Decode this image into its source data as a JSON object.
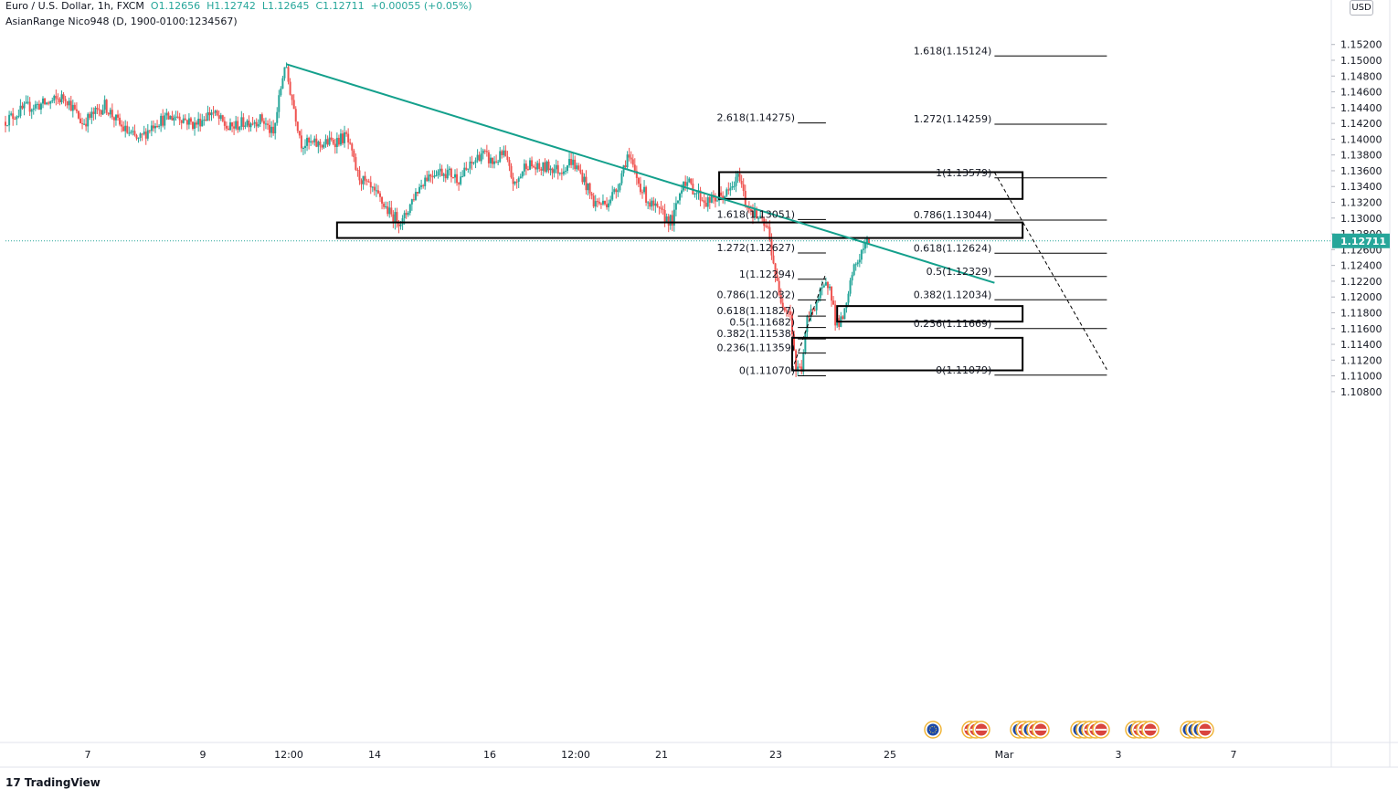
{
  "header": {
    "symbol_title": "Euro / U.S. Dollar, 1h, FXCM",
    "ohlc": {
      "o": "O1.12656",
      "h": "H1.12742",
      "l": "L1.12645",
      "c": "C1.12711",
      "change": "+0.00055 (+0.05%)"
    },
    "indicator": "AsianRange Nico948 (D, 1900-0100:1234567)"
  },
  "currency_button": "USD",
  "brand": {
    "name": "TradingView",
    "mark": "17"
  },
  "colors": {
    "up": "#26a69a",
    "down": "#ef5350",
    "trendline": "#14a08c",
    "grid": "#e6e6e6",
    "axis_text": "#131722"
  },
  "chart_data": {
    "type": "candlestick",
    "symbol": "EURUSD",
    "timeframe": "1h",
    "last_price": "1.12711",
    "y_axis": {
      "ylim": [
        1.1068,
        1.1525
      ],
      "ticks": [
        "1.15200",
        "1.15000",
        "1.14800",
        "1.14600",
        "1.14400",
        "1.14200",
        "1.14000",
        "1.13800",
        "1.13600",
        "1.13400",
        "1.13200",
        "1.13000",
        "1.12800",
        "1.12600",
        "1.12400",
        "1.12200",
        "1.12000",
        "1.11800",
        "1.11600",
        "1.11400",
        "1.11200",
        "1.11000",
        "1.10800"
      ]
    },
    "x_axis": {
      "ticks": [
        "7",
        "9",
        "12:00",
        "14",
        "16",
        "12:00",
        "21",
        "23",
        "25",
        "Mar",
        "3",
        "7"
      ]
    },
    "price_path": [
      [
        0,
        1.1422
      ],
      [
        4,
        1.144
      ],
      [
        8,
        1.1446
      ],
      [
        11,
        1.1454
      ],
      [
        14,
        1.142
      ],
      [
        18,
        1.1443
      ],
      [
        21,
        1.1415
      ],
      [
        24,
        1.1398
      ],
      [
        27,
        1.1422
      ],
      [
        31,
        1.143
      ],
      [
        34,
        1.1418
      ],
      [
        37,
        1.1435
      ],
      [
        40,
        1.1413
      ],
      [
        43,
        1.1422
      ],
      [
        46,
        1.1425
      ],
      [
        48,
        1.1405
      ],
      [
        50,
        1.1495
      ],
      [
        51,
        1.1462
      ],
      [
        53,
        1.1395
      ],
      [
        56,
        1.1393
      ],
      [
        59,
        1.1398
      ],
      [
        61,
        1.1403
      ],
      [
        63,
        1.1355
      ],
      [
        65,
        1.1338
      ],
      [
        67,
        1.1323
      ],
      [
        69,
        1.1303
      ],
      [
        71,
        1.1295
      ],
      [
        73,
        1.1328
      ],
      [
        75,
        1.1351
      ],
      [
        77,
        1.136
      ],
      [
        79,
        1.1358
      ],
      [
        81,
        1.135
      ],
      [
        83,
        1.1365
      ],
      [
        85,
        1.1383
      ],
      [
        87,
        1.137
      ],
      [
        89,
        1.1381
      ],
      [
        91,
        1.134
      ],
      [
        93,
        1.137
      ],
      [
        95,
        1.1362
      ],
      [
        97,
        1.1365
      ],
      [
        99,
        1.136
      ],
      [
        101,
        1.1373
      ],
      [
        103,
        1.1353
      ],
      [
        105,
        1.132
      ],
      [
        107,
        1.1318
      ],
      [
        109,
        1.1335
      ],
      [
        111,
        1.138
      ],
      [
        113,
        1.1345
      ],
      [
        115,
        1.1318
      ],
      [
        117,
        1.1305
      ],
      [
        119,
        1.1295
      ],
      [
        121,
        1.135
      ],
      [
        123,
        1.1335
      ],
      [
        125,
        1.132
      ],
      [
        127,
        1.1325
      ],
      [
        129,
        1.1332
      ],
      [
        131,
        1.1354
      ],
      [
        132,
        1.132
      ],
      [
        134,
        1.1302
      ],
      [
        136,
        1.1285
      ],
      [
        137,
        1.1245
      ],
      [
        138,
        1.12
      ],
      [
        140,
        1.118
      ],
      [
        141,
        1.1108
      ],
      [
        142,
        1.111
      ],
      [
        143,
        1.117
      ],
      [
        145,
        1.12
      ],
      [
        147,
        1.122
      ],
      [
        148,
        1.117
      ],
      [
        149,
        1.1168
      ],
      [
        150,
        1.1186
      ],
      [
        151,
        1.123
      ],
      [
        153,
        1.1262
      ],
      [
        154,
        1.1271
      ]
    ],
    "trendline": {
      "from": [
        50,
        1.1495
      ],
      "to": [
        176,
        1.1218
      ]
    },
    "zones": [
      {
        "x": [
          127,
          181
        ],
        "y": [
          1.13243,
          1.13582
        ]
      },
      {
        "x": [
          59,
          181
        ],
        "y": [
          1.12748,
          1.12945
        ]
      },
      {
        "x": [
          148,
          181
        ],
        "y": [
          1.11688,
          1.11885
        ]
      },
      {
        "x": [
          140,
          181
        ],
        "y": [
          1.1107,
          1.11483
        ]
      }
    ],
    "fib_left": {
      "x_text": 140,
      "x_line": [
        141,
        146
      ],
      "levels": [
        {
          "label": "2.618(1.14275)",
          "price": 1.14275
        },
        {
          "label": "1.618(1.13051)",
          "price": 1.13051
        },
        {
          "label": "1.272(1.12627)",
          "price": 1.12627
        },
        {
          "label": "1(1.12294)",
          "price": 1.12294
        },
        {
          "label": "0.786(1.12032)",
          "price": 1.12032
        },
        {
          "label": "0.618(1.11827)",
          "price": 1.11827
        },
        {
          "label": "0.5(1.11682)",
          "price": 1.11682
        },
        {
          "label": "0.382(1.11538)",
          "price": 1.11538
        },
        {
          "label": "0.236(1.11359)",
          "price": 1.11359
        },
        {
          "label": "0(1.11070)",
          "price": 1.1107
        }
      ]
    },
    "fib_right": {
      "x_text": 175,
      "x_line": [
        176,
        196
      ],
      "levels": [
        {
          "label": "1.618(1.15124)",
          "price": 1.15124
        },
        {
          "label": "1.272(1.14259)",
          "price": 1.14259
        },
        {
          "label": "1(1.13579)",
          "price": 1.13579
        },
        {
          "label": "0.786(1.13044)",
          "price": 1.13044
        },
        {
          "label": "0.618(1.12624)",
          "price": 1.12624
        },
        {
          "label": "0.5(1.12329)",
          "price": 1.12329
        },
        {
          "label": "0.382(1.12034)",
          "price": 1.12034
        },
        {
          "label": "0.236(1.11669)",
          "price": 1.11669
        },
        {
          "label": "0(1.11079)",
          "price": 1.11079
        }
      ]
    },
    "dashed_guides": [
      {
        "from": [
          140,
          1.11075
        ],
        "to": [
          146,
          1.123
        ]
      },
      {
        "from": [
          176,
          1.13579
        ],
        "to": [
          196,
          1.11079
        ]
      }
    ],
    "event_icon_groups": [
      {
        "flags": [
          "eu"
        ]
      },
      {
        "flags": [
          "us",
          "us",
          "us"
        ]
      },
      {
        "flags": [
          "eu",
          "us",
          "eu",
          "us",
          "us"
        ]
      },
      {
        "flags": [
          "eu",
          "eu",
          "us",
          "us",
          "us"
        ]
      },
      {
        "flags": [
          "eu",
          "us",
          "us",
          "us"
        ]
      },
      {
        "flags": [
          "eu",
          "eu",
          "eu",
          "us"
        ]
      }
    ]
  }
}
